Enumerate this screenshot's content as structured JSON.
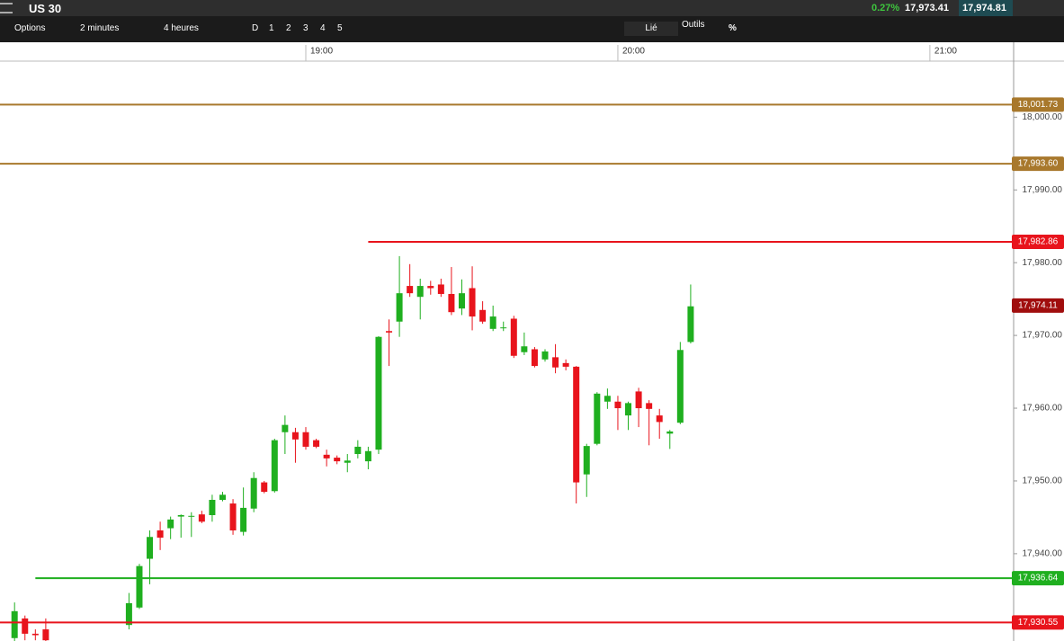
{
  "header": {
    "symbol": "US 30",
    "change": "0.27%",
    "bid": "17,973.41",
    "ask": "17,974.81"
  },
  "toolbar": {
    "options": "Options",
    "interval": "2 minutes",
    "range": "4 heures",
    "periods": [
      "D",
      "1",
      "2",
      "3",
      "4",
      "5"
    ],
    "link": "Lié",
    "tools": "Outils",
    "percent": "%"
  },
  "chart_data": {
    "type": "candlestick",
    "up_color": "#1faf1f",
    "down_color": "#e8141c",
    "x": [
      -56,
      -54,
      -52,
      -50,
      -34,
      -32,
      -30,
      -28,
      -26,
      -24,
      -22,
      -20,
      -18,
      -16,
      -14,
      -12,
      -10,
      -8,
      -6,
      -4,
      -2,
      0,
      2,
      4,
      6,
      8,
      10,
      12,
      14,
      16,
      18,
      20,
      22,
      24,
      26,
      28,
      30,
      32,
      34,
      36,
      38,
      40,
      42,
      44,
      46,
      48,
      50,
      52,
      54,
      56,
      58,
      60,
      62,
      64,
      66,
      68,
      70,
      72,
      74
    ],
    "open": [
      17928.4,
      17931.1,
      17929.0,
      17929.6,
      17930.2,
      17932.6,
      17939.3,
      17943.2,
      17943.5,
      17945.1,
      17945.1,
      17945.4,
      17945.3,
      17947.4,
      17946.9,
      17943.0,
      17946.2,
      17949.8,
      17948.6,
      17956.7,
      17956.7,
      17956.7,
      17955.6,
      17953.6,
      17953.2,
      17952.5,
      17953.7,
      17952.7,
      17954.3,
      17970.6,
      17971.9,
      17976.8,
      17975.3,
      17976.8,
      17977.0,
      17975.7,
      17973.7,
      17976.5,
      17973.5,
      17970.9,
      17971.0,
      17972.3,
      17967.7,
      17968.1,
      17966.7,
      17967.0,
      17966.2,
      17965.7,
      17950.9,
      17955.1,
      17960.9,
      17960.9,
      17959.0,
      17962.3,
      17960.7,
      17959.0,
      17956.5,
      17958.0,
      17969.1
    ],
    "high": [
      17933.3,
      17931.5,
      17929.6,
      17931.1,
      17934.6,
      17938.6,
      17943.2,
      17944.4,
      17945.1,
      17945.4,
      17945.7,
      17945.9,
      17948.1,
      17948.5,
      17947.5,
      17949.1,
      17951.2,
      17950.0,
      17955.8,
      17959.0,
      17957.3,
      17957.4,
      17955.8,
      17954.3,
      17953.5,
      17953.7,
      17955.6,
      17954.7,
      17969.9,
      17972.2,
      17980.9,
      17979.8,
      17977.8,
      17977.5,
      17977.8,
      17979.4,
      17977.7,
      17979.5,
      17974.7,
      17974.1,
      17971.9,
      17972.7,
      17970.4,
      17968.4,
      17968.1,
      17968.8,
      17966.7,
      17965.8,
      17955.1,
      17962.2,
      17962.7,
      17961.7,
      17960.9,
      17962.8,
      17961.1,
      17959.9,
      17957.0,
      17969.1,
      17977.0
    ],
    "low": [
      17928.0,
      17928.1,
      17928.1,
      17928.0,
      17929.6,
      17932.4,
      17935.8,
      17940.5,
      17942.0,
      17942.2,
      17942.3,
      17944.2,
      17944.4,
      17947.2,
      17942.6,
      17942.5,
      17945.7,
      17948.3,
      17948.4,
      17953.7,
      17952.5,
      17954.3,
      17954.5,
      17952.0,
      17952.3,
      17951.2,
      17953.1,
      17951.6,
      17953.7,
      17965.8,
      17969.8,
      17975.3,
      17972.2,
      17975.6,
      17975.3,
      17972.8,
      17972.8,
      17970.7,
      17971.6,
      17970.6,
      17970.6,
      17966.9,
      17967.3,
      17965.6,
      17966.4,
      17964.8,
      17965.2,
      17946.9,
      17947.8,
      17954.9,
      17959.9,
      17957.0,
      17957.0,
      17957.4,
      17954.9,
      17955.8,
      17954.4,
      17957.8,
      17968.9
    ],
    "close": [
      17932.1,
      17929.0,
      17928.8,
      17928.1,
      17933.2,
      17938.3,
      17942.3,
      17942.2,
      17944.7,
      17945.3,
      17945.2,
      17944.4,
      17947.4,
      17948.1,
      17943.2,
      17946.3,
      17950.4,
      17948.5,
      17955.6,
      17957.7,
      17955.7,
      17954.7,
      17954.7,
      17953.1,
      17952.7,
      17952.8,
      17954.7,
      17954.1,
      17969.8,
      17970.4,
      17975.8,
      17975.8,
      17976.8,
      17976.5,
      17975.7,
      17973.2,
      17975.8,
      17972.6,
      17971.9,
      17972.6,
      17971.1,
      17967.2,
      17968.5,
      17965.8,
      17967.8,
      17965.6,
      17965.7,
      17949.8,
      17954.8,
      17962.0,
      17961.7,
      17960.0,
      17960.7,
      17960.0,
      17959.9,
      17958.1,
      17956.8,
      17968.0,
      17974.0
    ],
    "xlim": [
      -58.8,
      136.1
    ],
    "xticks": [
      {
        "value": 0,
        "label": "19:00"
      },
      {
        "value": 60,
        "label": "20:00"
      },
      {
        "value": 120,
        "label": "21:00"
      }
    ],
    "ylim": [
      17928.0,
      18007.7
    ],
    "yticks": [
      {
        "value": 17940,
        "label": "17,940.00"
      },
      {
        "value": 17950,
        "label": "17,950.00"
      },
      {
        "value": 17960,
        "label": "17,960.00"
      },
      {
        "value": 17970,
        "label": "17,970.00"
      },
      {
        "value": 17980,
        "label": "17,980.00"
      },
      {
        "value": 17990,
        "label": "17,990.00"
      },
      {
        "value": 18000,
        "label": "18,000.00"
      }
    ],
    "levels": [
      {
        "value": 18001.73,
        "label": "18,001.73",
        "color": "#a8782c"
      },
      {
        "value": 17993.6,
        "label": "17,993.60",
        "color": "#a8782c"
      },
      {
        "value": 17982.86,
        "label": "17,982.86",
        "color": "#e8141c",
        "x_start": 12
      },
      {
        "value": 17936.64,
        "label": "17,936.64",
        "color": "#1faf1f",
        "x_start": -52
      },
      {
        "value": 17930.55,
        "label": "17,930.55",
        "color": "#e8141c"
      }
    ],
    "last_price": {
      "value": 17974.11,
      "label": "17,974.11",
      "color": "#a00d0d"
    }
  }
}
